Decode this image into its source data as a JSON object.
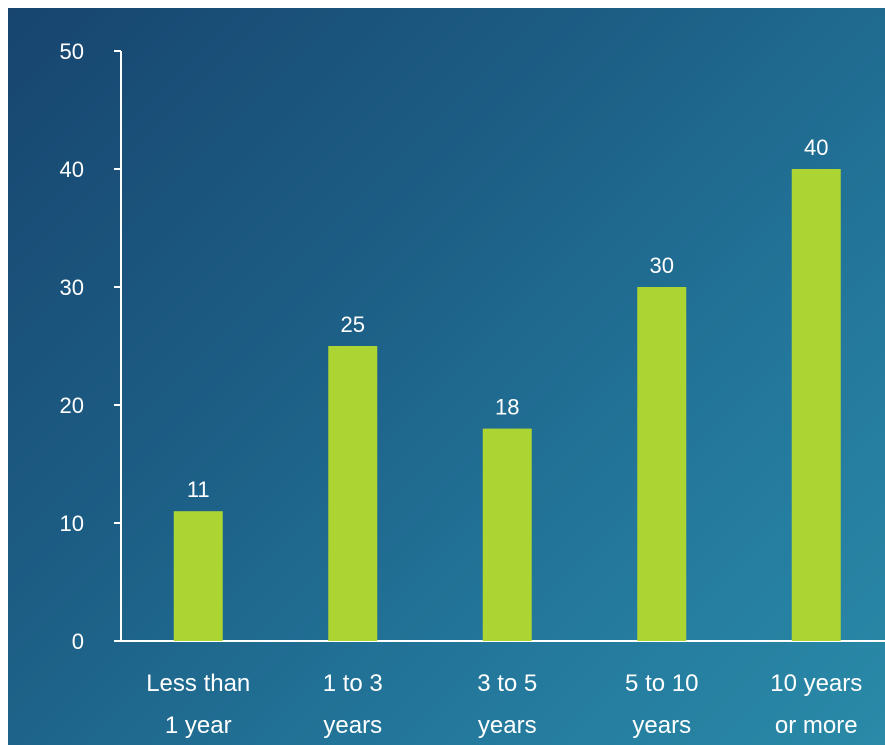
{
  "chart_data": {
    "type": "bar",
    "title": "",
    "xlabel": "",
    "ylabel": "",
    "categories": [
      [
        "Less than",
        "1 year"
      ],
      [
        "1 to 3",
        "years"
      ],
      [
        "3 to 5",
        "years"
      ],
      [
        "5 to 10",
        "years"
      ],
      [
        "10 years",
        "or more"
      ]
    ],
    "values": [
      11,
      25,
      18,
      30,
      40
    ],
    "data_labels": [
      "11",
      "25",
      "18",
      "30",
      "40"
    ],
    "ylim": [
      0,
      50
    ],
    "yticks": [
      0,
      10,
      20,
      30,
      40,
      50
    ],
    "ytick_labels": [
      "0",
      "10",
      "20",
      "30",
      "40",
      "50"
    ],
    "grid": false,
    "legend": "none",
    "colors": {
      "bar": "#acd433",
      "axis": "#ffffff",
      "text": "#ffffff",
      "frame": "#ffffff"
    }
  }
}
